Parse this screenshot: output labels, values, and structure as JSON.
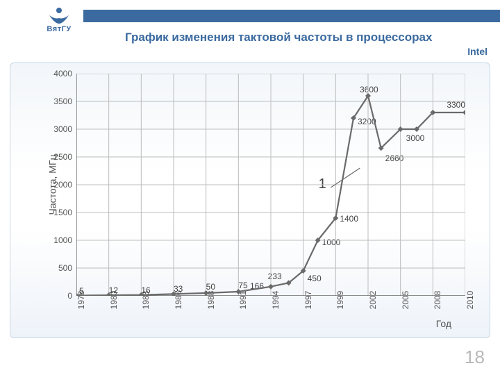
{
  "header": {
    "logo_text": "ВятГУ",
    "logo_color": "#3b6aa0",
    "bar_color": "#3b6aa0",
    "title": "График изменения тактовой частоты в процессорах",
    "subtitle": "Intel"
  },
  "page_number": "18",
  "chart": {
    "type": "line",
    "background_gradient": [
      "#f2f6fa",
      "#ffffff",
      "#eef3f9"
    ],
    "border_color": "#c9d6e3",
    "grid_color": "#bcbcbc",
    "axis_color": "#6a6a6a",
    "line_color": "#6a6a6a",
    "marker_color": "#6a6a6a",
    "line_width": 2.2,
    "marker_size": 4,
    "ylabel": "Частота, МГц",
    "xlabel": "Год",
    "label_fontsize": 14,
    "tick_fontsize": 12,
    "point_label_fontsize": 12,
    "ylim": [
      0,
      4000
    ],
    "ytick_step": 500,
    "x_categories": [
      "1978",
      "1980",
      "1983",
      "1986",
      "1988",
      "1991",
      "1994",
      "1997",
      "1999",
      "2002",
      "2005",
      "2008",
      "2010"
    ],
    "series": {
      "x_idx": [
        0,
        1,
        2,
        3,
        4,
        5,
        6,
        6.55,
        7,
        7.45,
        8,
        8.55,
        9,
        9.4,
        10,
        10.5,
        11,
        12
      ],
      "y": [
        5,
        12,
        16,
        33,
        50,
        75,
        166,
        233,
        450,
        1000,
        1400,
        3200,
        3600,
        2660,
        3000,
        3000,
        3300,
        3300
      ],
      "labels": [
        "5",
        "12",
        "16",
        "33",
        "50",
        "75",
        "166",
        "233",
        "450",
        "1000",
        "1400",
        "3200",
        "3600",
        "2660",
        "3000",
        "",
        "3300",
        ""
      ],
      "label_dx": [
        4,
        0,
        0,
        0,
        0,
        0,
        -30,
        -30,
        6,
        6,
        6,
        6,
        -12,
        6,
        8,
        0,
        20,
        0
      ],
      "label_dy": [
        -14,
        -14,
        -14,
        -14,
        -16,
        -16,
        -8,
        -16,
        4,
        -4,
        -6,
        -2,
        -16,
        8,
        6,
        0,
        -18,
        0
      ]
    },
    "annotation": {
      "text": "1",
      "x_idx": 7.6,
      "y": 2000,
      "leader_from": {
        "x_idx": 7.85,
        "y": 1950
      },
      "leader_to": {
        "x_idx": 8.75,
        "y": 2300
      }
    }
  }
}
